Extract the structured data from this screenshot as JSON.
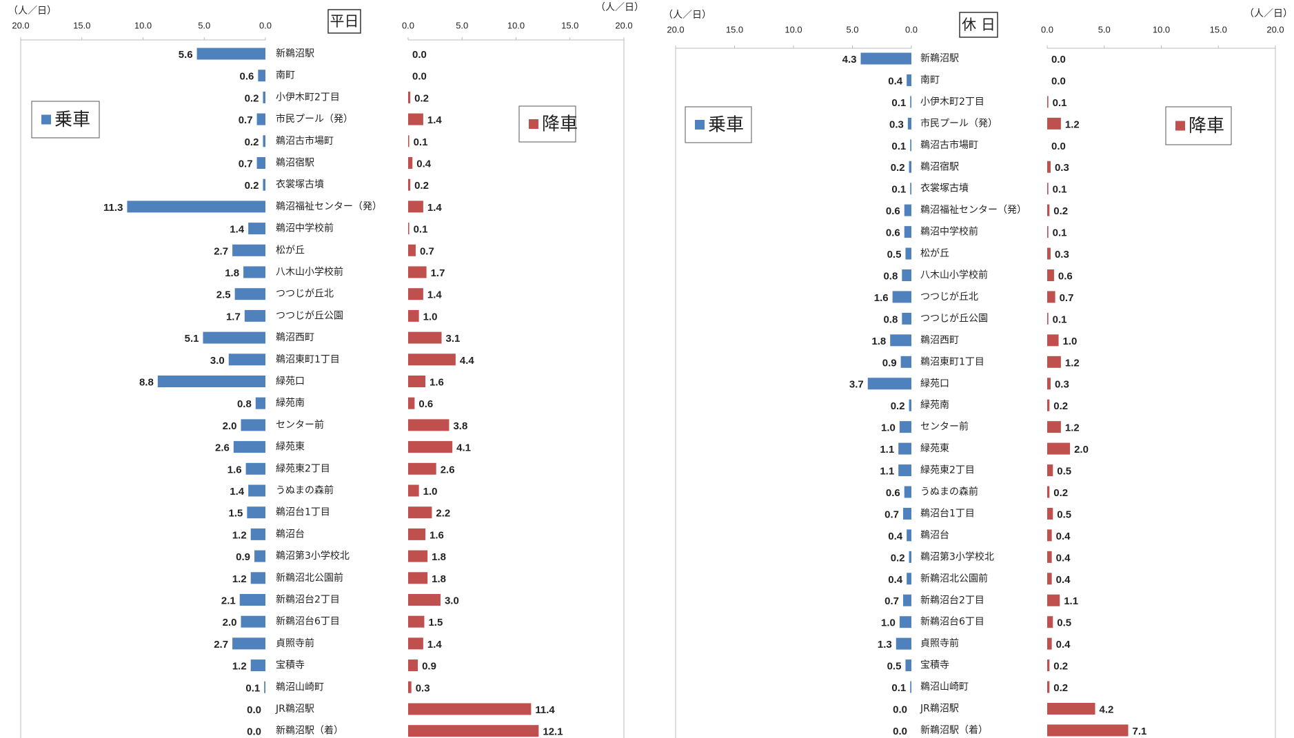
{
  "chart_data": [
    {
      "type": "bar",
      "title": "平日",
      "unit": "（人／日）",
      "categories": [
        "新鵜沼駅",
        "南町",
        "小伊木町2丁目",
        "市民プール（発）",
        "鵜沼古市場町",
        "鵜沼宿駅",
        "衣裳塚古墳",
        "鵜沼福祉センター（発）",
        "鵜沼中学校前",
        "松が丘",
        "八木山小学校前",
        "つつじが丘北",
        "つつじが丘公園",
        "鵜沼西町",
        "鵜沼東町1丁目",
        "緑苑口",
        "緑苑南",
        "センター前",
        "緑苑東",
        "緑苑東2丁目",
        "うぬまの森前",
        "鵜沼台1丁目",
        "鵜沼台",
        "鵜沼第3小学校北",
        "新鵜沼北公園前",
        "新鵜沼台2丁目",
        "新鵜沼台6丁目",
        "貞照寺前",
        "宝積寺",
        "鵜沼山崎町",
        "JR鵜沼駅",
        "新鵜沼駅（着）"
      ],
      "series": [
        {
          "name": "乗車",
          "color": "#4f81bd",
          "values": [
            5.6,
            0.6,
            0.2,
            0.7,
            0.2,
            0.7,
            0.2,
            11.3,
            1.4,
            2.7,
            1.8,
            2.5,
            1.7,
            5.1,
            3.0,
            8.8,
            0.8,
            2.0,
            2.6,
            1.6,
            1.4,
            1.5,
            1.2,
            0.9,
            1.2,
            2.1,
            2.0,
            2.7,
            1.2,
            0.1,
            0.0,
            0.0
          ],
          "value_labels": [
            "5.6",
            "0.6",
            "0.2",
            "0.7",
            "0.2",
            "0.7",
            "0.2",
            "11.3",
            "1.4",
            "2.7",
            "1.8",
            "2.5",
            "1.7",
            "5.1",
            "3.0",
            "8.8",
            "0.8",
            "2.0",
            "2.6",
            "1.6",
            "1.4",
            "1.5",
            "1.2",
            "0.9",
            "1.2",
            "2.1",
            "2.0",
            "2.7",
            "1.2",
            "0.1",
            "0.0",
            "0.0"
          ]
        },
        {
          "name": "降車",
          "color": "#c0504d",
          "values": [
            0.0,
            0.0,
            0.2,
            1.4,
            0.1,
            0.4,
            0.2,
            1.4,
            0.1,
            0.7,
            1.7,
            1.4,
            1.0,
            3.1,
            4.4,
            1.6,
            0.6,
            3.8,
            4.1,
            2.6,
            1.0,
            2.2,
            1.6,
            1.8,
            1.8,
            3.0,
            1.5,
            1.4,
            0.9,
            0.3,
            11.4,
            12.1
          ],
          "value_labels": [
            "0.0",
            "0.0",
            "0.2",
            "1.4",
            "0.1",
            "0.4",
            "0.2",
            "1.4",
            "0.1",
            "0.7",
            "1.7",
            "1.4",
            "1.0",
            "3.1",
            "4.4",
            "1.6",
            "0.6",
            "3.8",
            "4.1",
            "2.6",
            "1.0",
            "2.2",
            "1.6",
            "1.8",
            "1.8",
            "3.0",
            "1.5",
            "1.4",
            "0.9",
            "0.3",
            "11.4",
            "12.1"
          ]
        }
      ],
      "xlim": [
        0,
        20
      ],
      "xticks": [
        {
          "value": 0,
          "label": "0.0"
        },
        {
          "value": 5,
          "label": "5.0"
        },
        {
          "value": 10,
          "label": "10.0"
        },
        {
          "value": 15,
          "label": "15.0"
        },
        {
          "value": 20,
          "label": "20.0"
        }
      ]
    },
    {
      "type": "bar",
      "title": "休 日",
      "unit": "（人／日）",
      "categories": [
        "新鵜沼駅",
        "南町",
        "小伊木町2丁目",
        "市民プール（発）",
        "鵜沼古市場町",
        "鵜沼宿駅",
        "衣裳塚古墳",
        "鵜沼福祉センター（発）",
        "鵜沼中学校前",
        "松が丘",
        "八木山小学校前",
        "つつじが丘北",
        "つつじが丘公園",
        "鵜沼西町",
        "鵜沼東町1丁目",
        "緑苑口",
        "緑苑南",
        "センター前",
        "緑苑東",
        "緑苑東2丁目",
        "うぬまの森前",
        "鵜沼台1丁目",
        "鵜沼台",
        "鵜沼第3小学校北",
        "新鵜沼北公園前",
        "新鵜沼台2丁目",
        "新鵜沼台6丁目",
        "貞照寺前",
        "宝積寺",
        "鵜沼山崎町",
        "JR鵜沼駅",
        "新鵜沼駅（着）"
      ],
      "series": [
        {
          "name": "乗車",
          "color": "#4f81bd",
          "values": [
            4.3,
            0.4,
            0.1,
            0.3,
            0.1,
            0.2,
            0.1,
            0.6,
            0.6,
            0.5,
            0.8,
            1.6,
            0.8,
            1.8,
            0.9,
            3.7,
            0.2,
            1.0,
            1.1,
            1.1,
            0.6,
            0.7,
            0.4,
            0.2,
            0.4,
            0.7,
            1.0,
            1.3,
            0.5,
            0.1,
            0.0,
            0.0
          ],
          "value_labels": [
            "4.3",
            "0.4",
            "0.1",
            "0.3",
            "0.1",
            "0.2",
            "0.1",
            "0.6",
            "0.6",
            "0.5",
            "0.8",
            "1.6",
            "0.8",
            "1.8",
            "0.9",
            "3.7",
            "0.2",
            "1.0",
            "1.1",
            "1.1",
            "0.6",
            "0.7",
            "0.4",
            "0.2",
            "0.4",
            "0.7",
            "1.0",
            "1.3",
            "0.5",
            "0.1",
            "0.0",
            "0.0"
          ]
        },
        {
          "name": "降車",
          "color": "#c0504d",
          "values": [
            0.0,
            0.0,
            0.1,
            1.2,
            0.0,
            0.3,
            0.1,
            0.2,
            0.1,
            0.3,
            0.6,
            0.7,
            0.1,
            1.0,
            1.2,
            0.3,
            0.2,
            1.2,
            2.0,
            0.5,
            0.2,
            0.5,
            0.4,
            0.4,
            0.4,
            1.1,
            0.5,
            0.4,
            0.2,
            0.2,
            4.2,
            7.1
          ],
          "value_labels": [
            "0.0",
            "0.0",
            "0.1",
            "1.2",
            "0.0",
            "0.3",
            "0.1",
            "0.2",
            "0.1",
            "0.3",
            "0.6",
            "0.7",
            "0.1",
            "1.0",
            "1.2",
            "0.3",
            "0.2",
            "1.2",
            "2.0",
            "0.5",
            "0.2",
            "0.5",
            "0.4",
            "0.4",
            "0.4",
            "1.1",
            "0.5",
            "0.4",
            "0.2",
            "0.2",
            "4.2",
            "7.1"
          ]
        }
      ],
      "xlim": [
        0,
        20
      ],
      "xticks": [
        {
          "value": 0,
          "label": "0.0"
        },
        {
          "value": 5,
          "label": "5.0"
        },
        {
          "value": 10,
          "label": "10.0"
        },
        {
          "value": 15,
          "label": "15.0"
        },
        {
          "value": 20,
          "label": "20.0"
        }
      ]
    }
  ]
}
